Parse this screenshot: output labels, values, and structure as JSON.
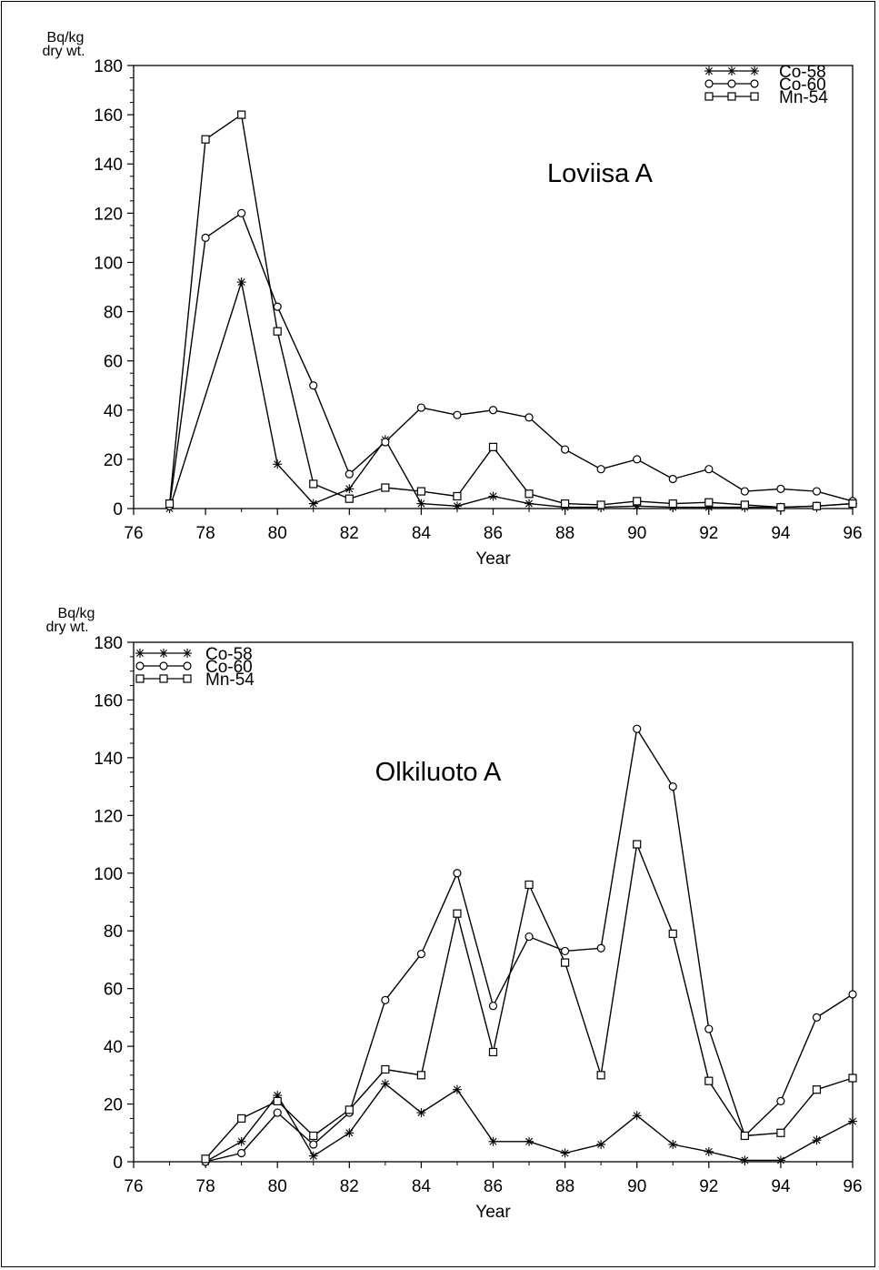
{
  "chart_data": [
    {
      "type": "line",
      "annotation": "Loviisa A",
      "xlabel": "Year",
      "ylabel": "Bq/kg dry wt.",
      "ylabel_lines": [
        "Bq/kg",
        "dry wt."
      ],
      "xlim": [
        76,
        96
      ],
      "ylim": [
        0,
        180
      ],
      "x_ticks": [
        76,
        78,
        80,
        82,
        84,
        86,
        88,
        90,
        92,
        94,
        96
      ],
      "y_ticks": [
        0,
        20,
        40,
        60,
        80,
        100,
        120,
        140,
        160,
        180
      ],
      "legend_position": "top-right",
      "grid": false,
      "series": [
        {
          "name": "Co-58",
          "marker": "star",
          "x": [
            77,
            79,
            80,
            81,
            82,
            83,
            84,
            85,
            86,
            87,
            88,
            89,
            90,
            91,
            92,
            93,
            94,
            95,
            96
          ],
          "y": [
            0,
            92,
            18,
            2,
            8,
            28,
            2,
            1,
            5,
            2,
            0.5,
            0.5,
            1,
            0.5,
            0.5,
            0.5,
            0.5,
            1,
            2
          ]
        },
        {
          "name": "Co-60",
          "marker": "circle",
          "x": [
            77,
            78,
            79,
            80,
            81,
            82,
            83,
            84,
            85,
            86,
            87,
            88,
            89,
            90,
            91,
            92,
            93,
            94,
            95,
            96
          ],
          "y": [
            1,
            110,
            120,
            82,
            50,
            14,
            27,
            41,
            38,
            40,
            37,
            24,
            16,
            20,
            12,
            16,
            7,
            8,
            7,
            3
          ]
        },
        {
          "name": "Mn-54",
          "marker": "square",
          "x": [
            77,
            78,
            79,
            80,
            81,
            82,
            83,
            84,
            85,
            86,
            87,
            88,
            89,
            90,
            91,
            92,
            93,
            94,
            95,
            96
          ],
          "y": [
            2,
            150,
            160,
            72,
            10,
            4,
            8.5,
            7,
            5,
            25,
            6,
            2,
            1.5,
            3,
            2,
            2.5,
            1.5,
            0.5,
            1,
            2
          ]
        }
      ]
    },
    {
      "type": "line",
      "annotation": "Olkiluoto A",
      "xlabel": "Year",
      "ylabel": "Bq/kg dry wt.",
      "ylabel_lines": [
        "Bq/kg",
        "dry wt."
      ],
      "xlim": [
        76,
        96
      ],
      "ylim": [
        0,
        180
      ],
      "x_ticks": [
        76,
        78,
        80,
        82,
        84,
        86,
        88,
        90,
        92,
        94,
        96
      ],
      "y_ticks": [
        0,
        20,
        40,
        60,
        80,
        100,
        120,
        140,
        160,
        180
      ],
      "legend_position": "top-left",
      "grid": false,
      "series": [
        {
          "name": "Co-58",
          "marker": "star",
          "x": [
            78,
            79,
            80,
            81,
            82,
            83,
            84,
            85,
            86,
            87,
            88,
            89,
            90,
            91,
            92,
            93,
            94,
            95,
            96
          ],
          "y": [
            0,
            7,
            23,
            2,
            10,
            27,
            17,
            25,
            7,
            7,
            3,
            6,
            16,
            6,
            3.5,
            0.5,
            0.5,
            7.5,
            14
          ]
        },
        {
          "name": "Co-60",
          "marker": "circle",
          "x": [
            78,
            79,
            80,
            81,
            82,
            83,
            84,
            85,
            86,
            87,
            88,
            89,
            90,
            91,
            92,
            93,
            94,
            95,
            96
          ],
          "y": [
            0,
            3,
            17,
            6,
            17,
            56,
            72,
            100,
            54,
            78,
            73,
            74,
            150,
            130,
            46,
            9,
            21,
            50,
            58
          ]
        },
        {
          "name": "Mn-54",
          "marker": "square",
          "x": [
            78,
            79,
            80,
            81,
            82,
            83,
            84,
            85,
            86,
            87,
            88,
            89,
            90,
            91,
            92,
            93,
            94,
            95,
            96
          ],
          "y": [
            1,
            15,
            21,
            9,
            18,
            32,
            30,
            86,
            38,
            96,
            69,
            30,
            110,
            79,
            28,
            9,
            10,
            25,
            29
          ]
        }
      ]
    }
  ]
}
